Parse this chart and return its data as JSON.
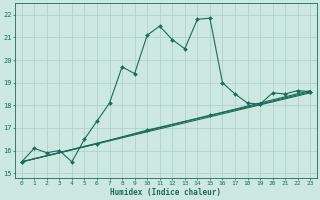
{
  "xlabel": "Humidex (Indice chaleur)",
  "bg_color": "#cce8e0",
  "grid_color": "#aacfc8",
  "line_color": "#1a6b5a",
  "xlim": [
    -0.5,
    23.5
  ],
  "ylim": [
    14.8,
    22.5
  ],
  "xticks": [
    0,
    1,
    2,
    3,
    4,
    5,
    6,
    7,
    8,
    9,
    10,
    11,
    12,
    13,
    14,
    15,
    16,
    17,
    18,
    19,
    20,
    21,
    22,
    23
  ],
  "yticks": [
    15,
    16,
    17,
    18,
    19,
    20,
    21,
    22
  ],
  "series1_x": [
    0,
    1,
    2,
    3,
    4,
    5,
    6,
    7,
    8,
    9,
    10,
    11,
    12,
    13,
    14,
    15,
    16,
    17,
    18,
    19,
    20,
    21,
    22,
    23
  ],
  "series1_y": [
    15.5,
    16.1,
    15.9,
    16.0,
    15.5,
    16.5,
    17.3,
    18.1,
    19.7,
    19.4,
    21.1,
    21.5,
    20.9,
    20.5,
    21.8,
    21.85,
    19.0,
    18.5,
    18.1,
    18.05,
    18.55,
    18.5,
    18.65,
    18.6
  ],
  "series2_x": [
    0,
    23
  ],
  "series2_y": [
    15.5,
    18.55
  ],
  "series3_x": [
    0,
    23
  ],
  "series3_y": [
    15.5,
    18.65
  ],
  "series4_x": [
    0,
    6,
    10,
    15,
    19,
    23
  ],
  "series4_y": [
    15.5,
    16.3,
    16.9,
    17.55,
    18.05,
    18.6
  ]
}
